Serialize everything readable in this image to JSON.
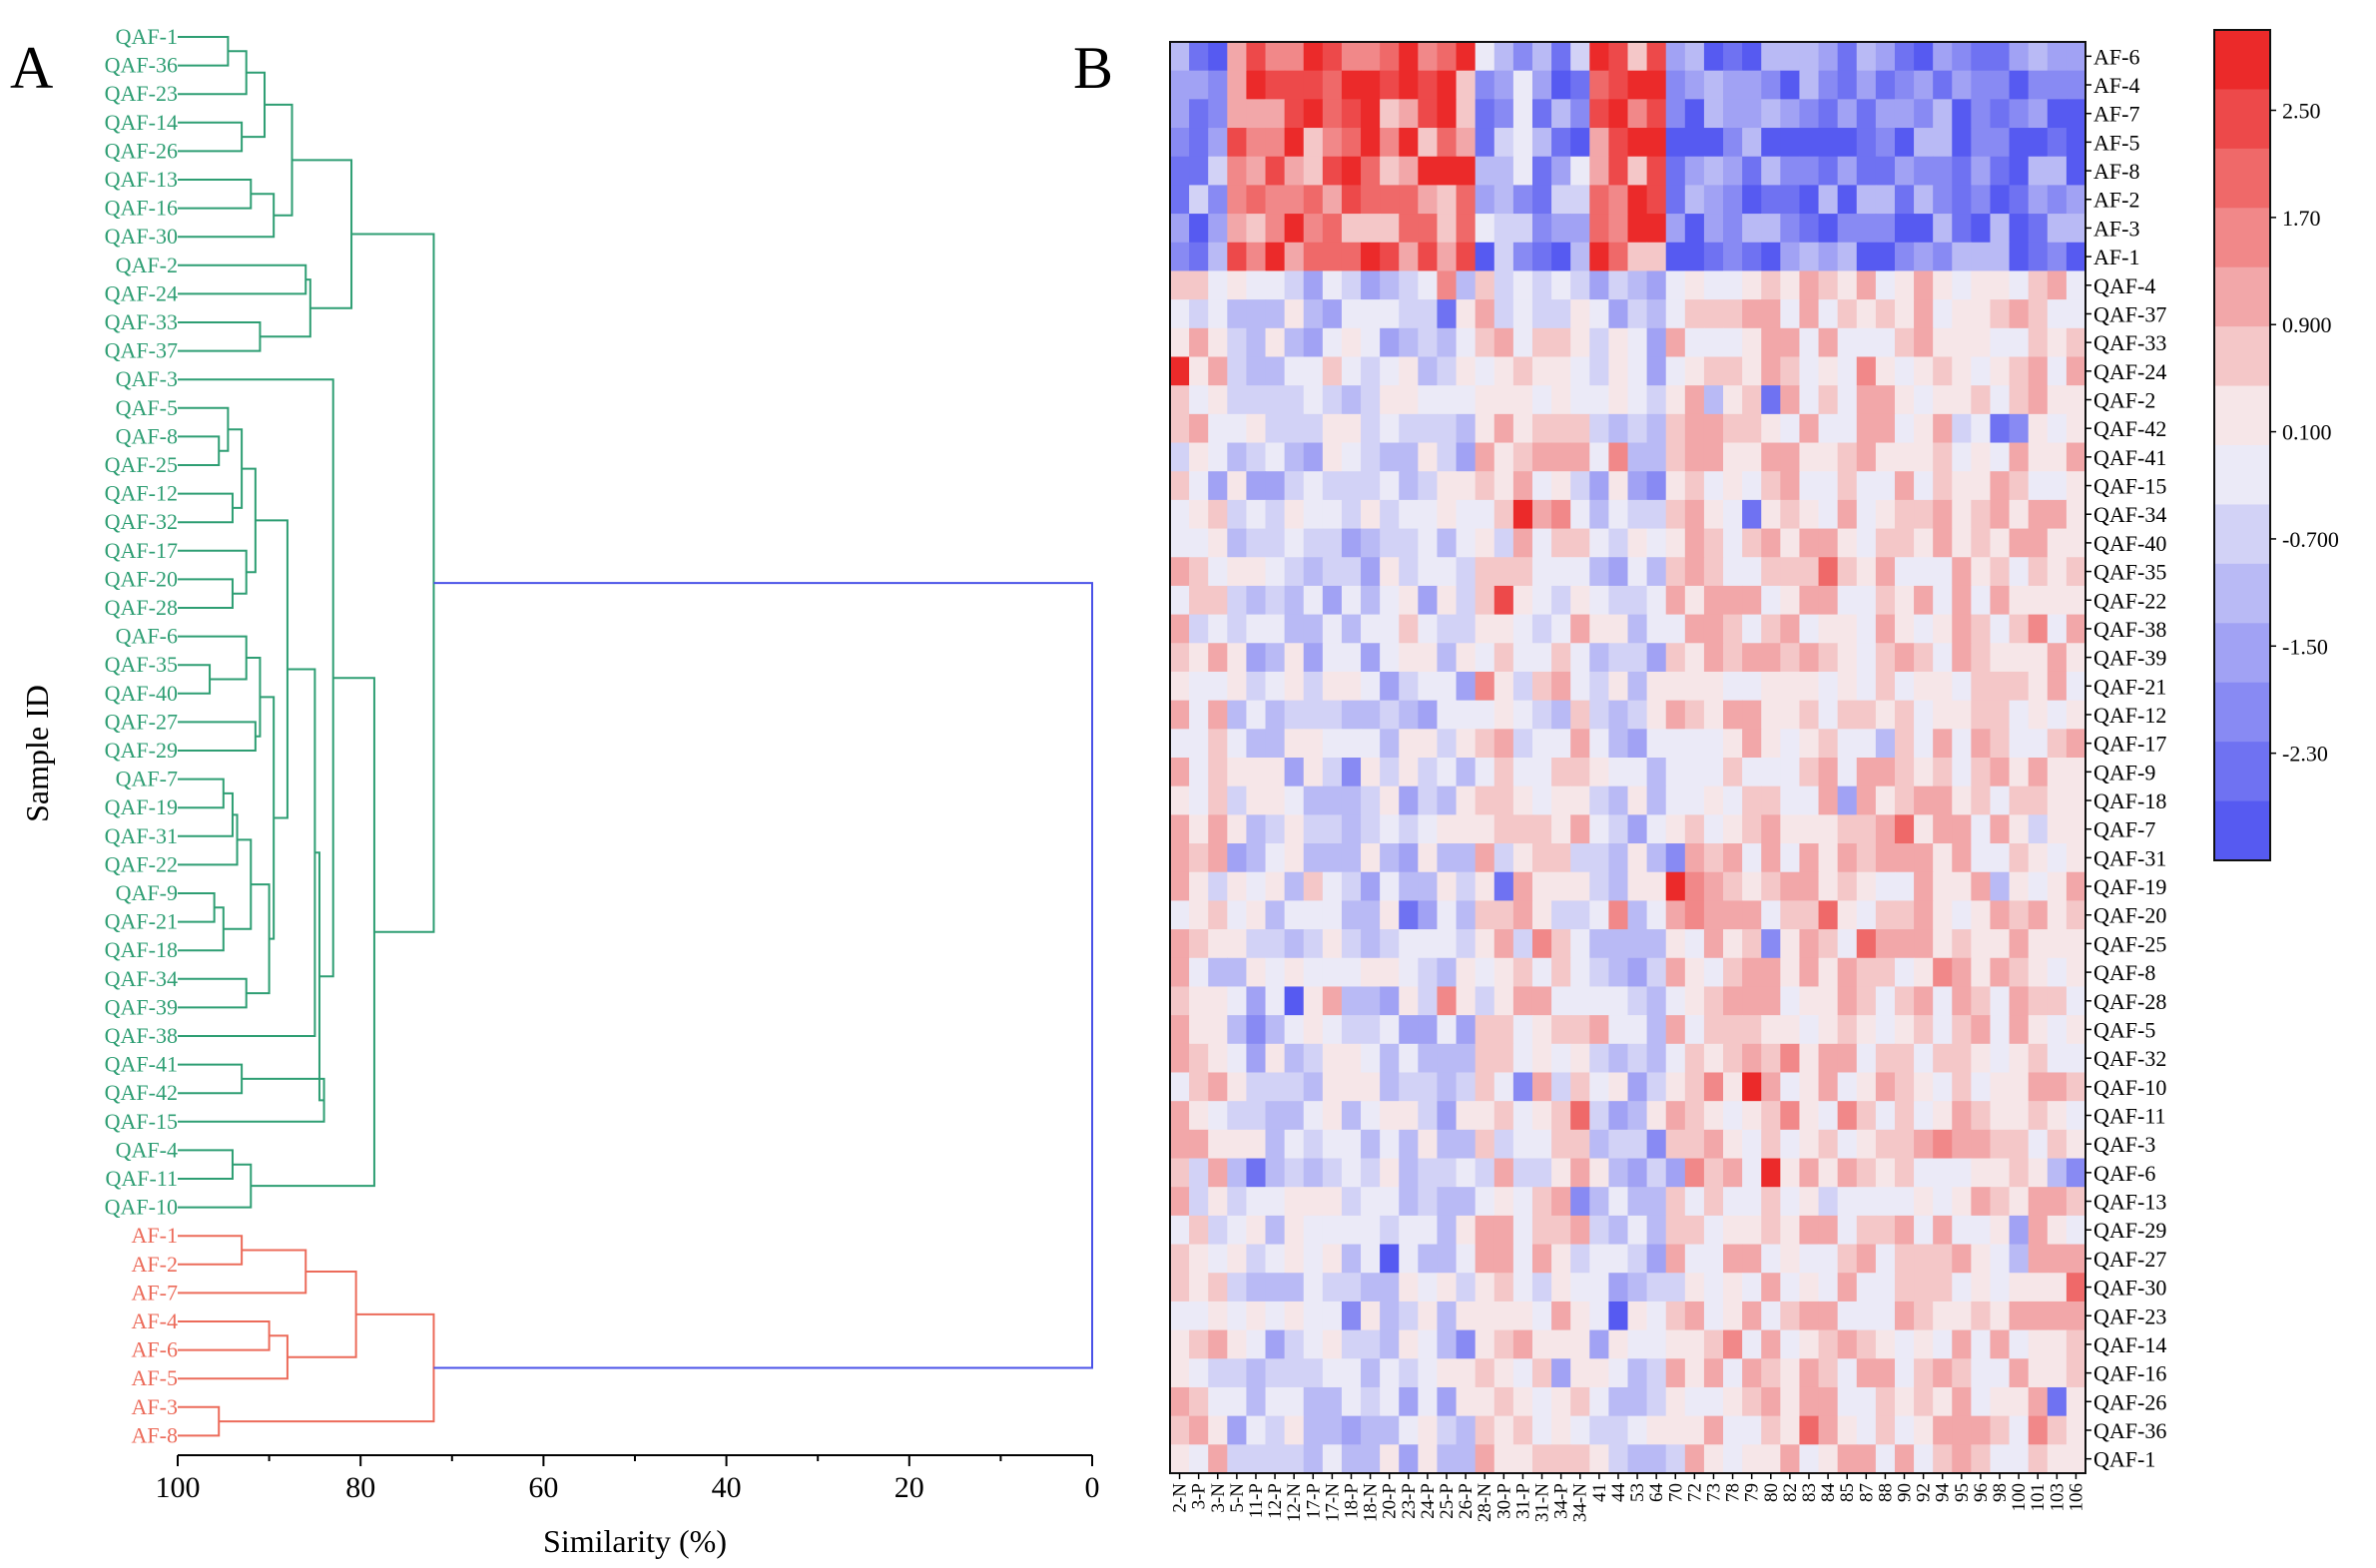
{
  "figure": {
    "panel_a_label": "A",
    "panel_b_label": "B"
  },
  "colors": {
    "qaf_cluster": "#2e9e73",
    "af_cluster": "#ec6b5a",
    "root_link": "#4a52e8",
    "heat_low": "#4a4ef0",
    "heat_mid": "#f7f6f8",
    "heat_high": "#ea1a1a"
  },
  "chart_data": [
    {
      "type": "dendrogram",
      "panel": "A",
      "xlabel": "Similarity (%)",
      "ylabel": "Sample ID",
      "xlim": [
        100,
        0
      ],
      "xticks": [
        100,
        80,
        60,
        40,
        20,
        0
      ],
      "leaves": [
        {
          "id": "QAF-1",
          "group": "QAF"
        },
        {
          "id": "QAF-36",
          "group": "QAF"
        },
        {
          "id": "QAF-23",
          "group": "QAF"
        },
        {
          "id": "QAF-14",
          "group": "QAF"
        },
        {
          "id": "QAF-26",
          "group": "QAF"
        },
        {
          "id": "QAF-13",
          "group": "QAF"
        },
        {
          "id": "QAF-16",
          "group": "QAF"
        },
        {
          "id": "QAF-30",
          "group": "QAF"
        },
        {
          "id": "QAF-2",
          "group": "QAF"
        },
        {
          "id": "QAF-24",
          "group": "QAF"
        },
        {
          "id": "QAF-33",
          "group": "QAF"
        },
        {
          "id": "QAF-37",
          "group": "QAF"
        },
        {
          "id": "QAF-3",
          "group": "QAF"
        },
        {
          "id": "QAF-5",
          "group": "QAF"
        },
        {
          "id": "QAF-8",
          "group": "QAF"
        },
        {
          "id": "QAF-25",
          "group": "QAF"
        },
        {
          "id": "QAF-12",
          "group": "QAF"
        },
        {
          "id": "QAF-32",
          "group": "QAF"
        },
        {
          "id": "QAF-17",
          "group": "QAF"
        },
        {
          "id": "QAF-20",
          "group": "QAF"
        },
        {
          "id": "QAF-28",
          "group": "QAF"
        },
        {
          "id": "QAF-6",
          "group": "QAF"
        },
        {
          "id": "QAF-35",
          "group": "QAF"
        },
        {
          "id": "QAF-40",
          "group": "QAF"
        },
        {
          "id": "QAF-27",
          "group": "QAF"
        },
        {
          "id": "QAF-29",
          "group": "QAF"
        },
        {
          "id": "QAF-7",
          "group": "QAF"
        },
        {
          "id": "QAF-19",
          "group": "QAF"
        },
        {
          "id": "QAF-31",
          "group": "QAF"
        },
        {
          "id": "QAF-22",
          "group": "QAF"
        },
        {
          "id": "QAF-9",
          "group": "QAF"
        },
        {
          "id": "QAF-21",
          "group": "QAF"
        },
        {
          "id": "QAF-18",
          "group": "QAF"
        },
        {
          "id": "QAF-34",
          "group": "QAF"
        },
        {
          "id": "QAF-39",
          "group": "QAF"
        },
        {
          "id": "QAF-38",
          "group": "QAF"
        },
        {
          "id": "QAF-41",
          "group": "QAF"
        },
        {
          "id": "QAF-42",
          "group": "QAF"
        },
        {
          "id": "QAF-15",
          "group": "QAF"
        },
        {
          "id": "QAF-4",
          "group": "QAF"
        },
        {
          "id": "QAF-11",
          "group": "QAF"
        },
        {
          "id": "QAF-10",
          "group": "QAF"
        },
        {
          "id": "AF-1",
          "group": "AF"
        },
        {
          "id": "AF-2",
          "group": "AF"
        },
        {
          "id": "AF-7",
          "group": "AF"
        },
        {
          "id": "AF-4",
          "group": "AF"
        },
        {
          "id": "AF-6",
          "group": "AF"
        },
        {
          "id": "AF-5",
          "group": "AF"
        },
        {
          "id": "AF-3",
          "group": "AF"
        },
        {
          "id": "AF-8",
          "group": "AF"
        }
      ],
      "merges": [
        {
          "a": "L:QAF-1",
          "b": "L:QAF-36",
          "sim": 94.5,
          "id": "m1"
        },
        {
          "a": "m1",
          "b": "L:QAF-23",
          "sim": 92.5,
          "id": "m2"
        },
        {
          "a": "L:QAF-14",
          "b": "L:QAF-26",
          "sim": 93.0,
          "id": "m3"
        },
        {
          "a": "m2",
          "b": "m3",
          "sim": 90.5,
          "id": "m4"
        },
        {
          "a": "L:QAF-13",
          "b": "L:QAF-16",
          "sim": 92.0,
          "id": "m5"
        },
        {
          "a": "m5",
          "b": "L:QAF-30",
          "sim": 89.5,
          "id": "m6"
        },
        {
          "a": "m4",
          "b": "m6",
          "sim": 87.5,
          "id": "m7"
        },
        {
          "a": "L:QAF-2",
          "b": "L:QAF-24",
          "sim": 86.0,
          "id": "m8"
        },
        {
          "a": "L:QAF-33",
          "b": "L:QAF-37",
          "sim": 91.0,
          "id": "m9"
        },
        {
          "a": "m8",
          "b": "m9",
          "sim": 85.5,
          "id": "m10"
        },
        {
          "a": "m7",
          "b": "m10",
          "sim": 81.0,
          "id": "m11"
        },
        {
          "a": "L:QAF-8",
          "b": "L:QAF-25",
          "sim": 95.5,
          "id": "m12"
        },
        {
          "a": "L:QAF-5",
          "b": "m12",
          "sim": 94.5,
          "id": "m13"
        },
        {
          "a": "L:QAF-12",
          "b": "L:QAF-32",
          "sim": 94.0,
          "id": "m14"
        },
        {
          "a": "m13",
          "b": "m14",
          "sim": 93.0,
          "id": "m15"
        },
        {
          "a": "L:QAF-20",
          "b": "L:QAF-28",
          "sim": 94.0,
          "id": "m16"
        },
        {
          "a": "L:QAF-17",
          "b": "m16",
          "sim": 92.5,
          "id": "m17"
        },
        {
          "a": "m15",
          "b": "m17",
          "sim": 91.5,
          "id": "m18"
        },
        {
          "a": "L:QAF-35",
          "b": "L:QAF-40",
          "sim": 96.5,
          "id": "m19"
        },
        {
          "a": "L:QAF-6",
          "b": "m19",
          "sim": 92.5,
          "id": "m20"
        },
        {
          "a": "L:QAF-27",
          "b": "L:QAF-29",
          "sim": 91.5,
          "id": "m21"
        },
        {
          "a": "m20",
          "b": "m21",
          "sim": 91.0,
          "id": "m22"
        },
        {
          "a": "L:QAF-7",
          "b": "L:QAF-19",
          "sim": 95.0,
          "id": "m23"
        },
        {
          "a": "m23",
          "b": "L:QAF-31",
          "sim": 94.0,
          "id": "m24"
        },
        {
          "a": "m24",
          "b": "L:QAF-22",
          "sim": 93.5,
          "id": "m25"
        },
        {
          "a": "L:QAF-9",
          "b": "L:QAF-21",
          "sim": 96.0,
          "id": "m26"
        },
        {
          "a": "m26",
          "b": "L:QAF-18",
          "sim": 95.0,
          "id": "m27"
        },
        {
          "a": "m25",
          "b": "m27",
          "sim": 92.0,
          "id": "m28"
        },
        {
          "a": "L:QAF-34",
          "b": "L:QAF-39",
          "sim": 92.5,
          "id": "m29"
        },
        {
          "a": "m28",
          "b": "m29",
          "sim": 90.0,
          "id": "m30"
        },
        {
          "a": "m22",
          "b": "m30",
          "sim": 89.5,
          "id": "m31"
        },
        {
          "a": "m18",
          "b": "m31",
          "sim": 88.0,
          "id": "m32"
        },
        {
          "a": "m32",
          "b": "L:QAF-38",
          "sim": 85.0,
          "id": "m33"
        },
        {
          "a": "L:QAF-41",
          "b": "L:QAF-42",
          "sim": 93.0,
          "id": "m34"
        },
        {
          "a": "m34",
          "b": "L:QAF-15",
          "sim": 84.0,
          "id": "m35"
        },
        {
          "a": "m33",
          "b": "m35",
          "sim": 84.5,
          "id": "m36"
        },
        {
          "a": "L:QAF-3",
          "b": "m36",
          "sim": 83.0,
          "id": "m37"
        },
        {
          "a": "L:QAF-4",
          "b": "L:QAF-11",
          "sim": 94.0,
          "id": "m38"
        },
        {
          "a": "m38",
          "b": "L:QAF-10",
          "sim": 92.0,
          "id": "m39"
        },
        {
          "a": "m37",
          "b": "m39",
          "sim": 78.5,
          "id": "m40"
        },
        {
          "a": "m11",
          "b": "m40",
          "sim": 72.0,
          "id": "m41"
        },
        {
          "a": "L:AF-1",
          "b": "L:AF-2",
          "sim": 93.0,
          "id": "a1"
        },
        {
          "a": "a1",
          "b": "L:AF-7",
          "sim": 86.0,
          "id": "a2"
        },
        {
          "a": "L:AF-4",
          "b": "L:AF-6",
          "sim": 90.0,
          "id": "a3"
        },
        {
          "a": "a3",
          "b": "L:AF-5",
          "sim": 88.0,
          "id": "a4"
        },
        {
          "a": "a2",
          "b": "a4",
          "sim": 80.5,
          "id": "a5"
        },
        {
          "a": "L:AF-3",
          "b": "L:AF-8",
          "sim": 95.5,
          "id": "a6"
        },
        {
          "a": "a5",
          "b": "a6",
          "sim": 72.0,
          "id": "a7"
        },
        {
          "a": "m41",
          "b": "a7",
          "sim": 0.0,
          "id": "root"
        }
      ]
    },
    {
      "type": "heatmap",
      "panel": "B",
      "columns": [
        "2-N",
        "3-P",
        "3-N",
        "5-N",
        "11-P",
        "12-P",
        "12-N",
        "17-P",
        "17-N",
        "18-P",
        "18-N",
        "20-P",
        "23-P",
        "24-P",
        "25-P",
        "26-P",
        "28-N",
        "30-P",
        "31-P",
        "31-N",
        "34-P",
        "34-N",
        "41",
        "44",
        "53",
        "64",
        "70",
        "72",
        "73",
        "78",
        "79",
        "80",
        "82",
        "83",
        "84",
        "85",
        "87",
        "88",
        "90",
        "92",
        "94",
        "95",
        "96",
        "98",
        "100",
        "101",
        "103",
        "106"
      ],
      "rows": [
        "AF-6",
        "AF-4",
        "AF-7",
        "AF-5",
        "AF-8",
        "AF-2",
        "AF-3",
        "AF-1",
        "QAF-4",
        "QAF-37",
        "QAF-33",
        "QAF-24",
        "QAF-2",
        "QAF-42",
        "QAF-41",
        "QAF-15",
        "QAF-34",
        "QAF-40",
        "QAF-35",
        "QAF-22",
        "QAF-38",
        "QAF-39",
        "QAF-21",
        "QAF-12",
        "QAF-17",
        "QAF-9",
        "QAF-18",
        "QAF-7",
        "QAF-31",
        "QAF-19",
        "QAF-20",
        "QAF-25",
        "QAF-8",
        "QAF-28",
        "QAF-5",
        "QAF-32",
        "QAF-10",
        "QAF-11",
        "QAF-3",
        "QAF-6",
        "QAF-13",
        "QAF-29",
        "QAF-27",
        "QAF-30",
        "QAF-23",
        "QAF-14",
        "QAF-16",
        "QAF-26",
        "QAF-36",
        "QAF-1"
      ],
      "column_block_means": [
        {
          "from": 0,
          "to": 2,
          "af": -2.0,
          "qaf": 0.35
        },
        {
          "from": 3,
          "to": 15,
          "af": 1.9,
          "qaf": -0.55
        },
        {
          "from": 16,
          "to": 21,
          "af": -1.6,
          "qaf": 0.25
        },
        {
          "from": 22,
          "to": 25,
          "af": 1.9,
          "qaf": -0.7
        },
        {
          "from": 26,
          "to": 47,
          "af": -2.2,
          "qaf": 0.45
        }
      ],
      "colorscale": {
        "min": -3.1,
        "max": 3.1,
        "ticks": [
          "2.50",
          "1.70",
          "0.900",
          "0.100",
          "-0.700",
          "-1.50",
          "-2.30"
        ],
        "tick_values": [
          2.5,
          1.7,
          0.9,
          0.1,
          -0.7,
          -1.5,
          -2.3
        ],
        "levels": 14
      }
    }
  ]
}
